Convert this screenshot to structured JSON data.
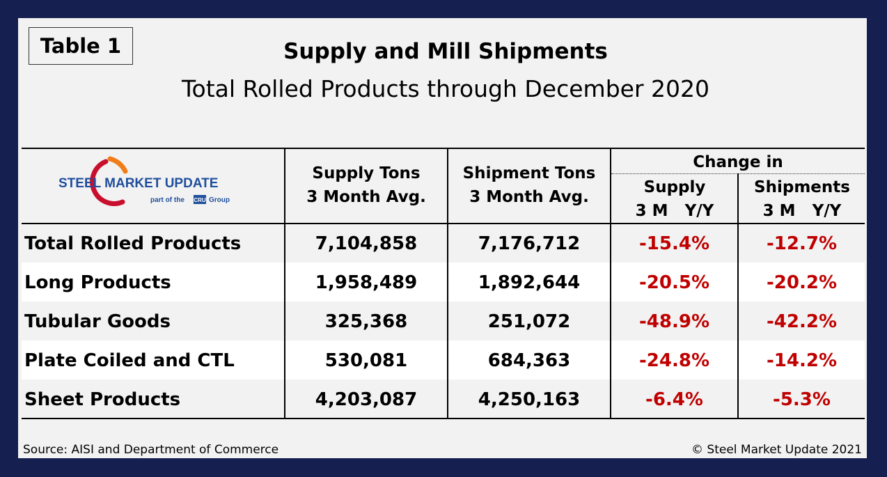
{
  "table_tag": "Table 1",
  "title": "Supply and Mill Shipments",
  "subtitle": "Total Rolled Products through December 2020",
  "logo": {
    "text_main": "STEEL MARKET UPDATE",
    "text_sub_before": "part of the",
    "text_sub_mark": "CRU",
    "text_sub_after": "Group",
    "colors": {
      "blue": "#1f4e9c",
      "orange": "#f07d1a",
      "red": "#c8102e"
    }
  },
  "headers": {
    "supply_line1": "Supply Tons",
    "supply_line2": "3 Month Avg.",
    "shipment_line1": "Shipment Tons",
    "shipment_line2": "3 Month Avg.",
    "change_in": "Change in",
    "change_supply_line1": "Supply",
    "change_supply_line2": "3 M   Y/Y",
    "change_shipments_line1": "Shipments",
    "change_shipments_line2": "3 M   Y/Y"
  },
  "rows": [
    {
      "label": "Total Rolled Products",
      "supply": "7,104,858",
      "shipments": "7,176,712",
      "supply_change": "-15.4%",
      "shipments_change": "-12.7%"
    },
    {
      "label": "Long Products",
      "supply": "1,958,489",
      "shipments": "1,892,644",
      "supply_change": "-20.5%",
      "shipments_change": "-20.2%"
    },
    {
      "label": "Tubular Goods",
      "supply": "325,368",
      "shipments": "251,072",
      "supply_change": "-48.9%",
      "shipments_change": "-42.2%"
    },
    {
      "label": "Plate Coiled and CTL",
      "supply": "530,081",
      "shipments": "684,363",
      "supply_change": "-24.8%",
      "shipments_change": "-14.2%"
    },
    {
      "label": "Sheet Products",
      "supply": "4,203,087",
      "shipments": "4,250,163",
      "supply_change": "-6.4%",
      "shipments_change": "-5.3%"
    }
  ],
  "footer": {
    "source": "Source: AISI and Department of Commerce",
    "copyright": "© Steel Market Update 2021"
  },
  "colors": {
    "frame": "#162050",
    "panel": "#f2f2f2",
    "negative": "#c00000",
    "row_stripe": "#ffffff"
  }
}
